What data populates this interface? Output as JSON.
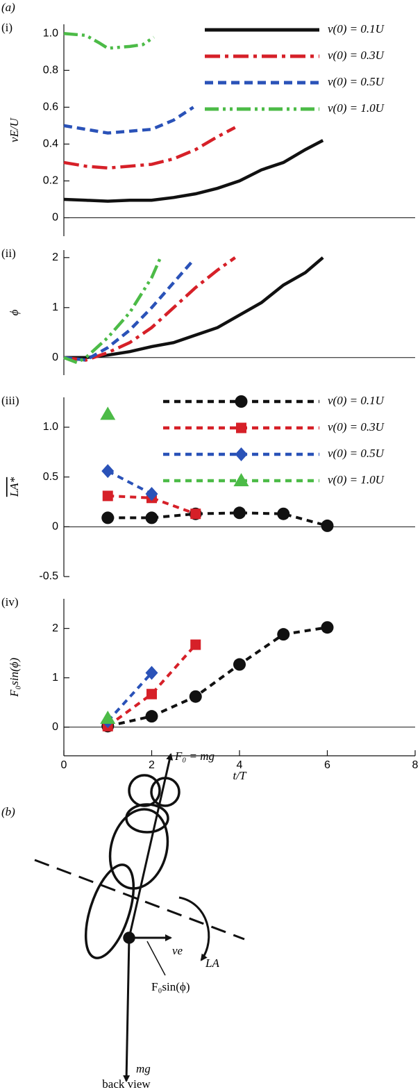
{
  "panel_label": "(a)",
  "chart_data": [
    {
      "type": "line",
      "panel_label": "(i)",
      "ylabel": "vE/U",
      "xlim": [
        0,
        8
      ],
      "ylim": [
        -0.1,
        1.05
      ],
      "yticks": [
        0,
        0.2,
        0.4,
        0.6,
        0.8,
        {
          "value": 1,
          "label": "1.0"
        }
      ],
      "legend": "upper right",
      "series": [
        {
          "name": "v(0) = 0.1U",
          "color": "#111111",
          "dash": "solid",
          "x": [
            0,
            0.5,
            1,
            1.5,
            2,
            2.5,
            3,
            3.5,
            4,
            4.5,
            5,
            5.5,
            5.9
          ],
          "values": [
            0.1,
            0.095,
            0.09,
            0.095,
            0.095,
            0.11,
            0.13,
            0.16,
            0.2,
            0.26,
            0.3,
            0.37,
            0.42
          ]
        },
        {
          "name": "v(0) = 0.3U",
          "color": "#d62028",
          "dash": "dashdot",
          "x": [
            0,
            0.5,
            1,
            1.5,
            2,
            2.5,
            3,
            3.5,
            3.9
          ],
          "values": [
            0.3,
            0.28,
            0.27,
            0.28,
            0.29,
            0.32,
            0.37,
            0.44,
            0.49
          ]
        },
        {
          "name": "v(0) = 0.5U",
          "color": "#2a52b8",
          "dash": "dashed",
          "x": [
            0,
            0.5,
            1,
            1.5,
            2,
            2.5,
            2.95
          ],
          "values": [
            0.5,
            0.48,
            0.46,
            0.47,
            0.48,
            0.53,
            0.6
          ]
        },
        {
          "name": "v(0) = 1.0U",
          "color": "#4cbb47",
          "dash": "dashdotdot",
          "x": [
            0,
            0.5,
            0.8,
            1,
            1.5,
            1.8,
            2.05
          ],
          "values": [
            1.0,
            0.99,
            0.95,
            0.92,
            0.93,
            0.94,
            0.98
          ]
        }
      ]
    },
    {
      "type": "line",
      "panel_label": "(ii)",
      "ylabel": "ϕ",
      "xlim": [
        0,
        8
      ],
      "ylim": [
        -0.35,
        2.15
      ],
      "yticks": [
        0,
        1,
        2
      ],
      "series": [
        {
          "name": "v(0) = 0.1U",
          "color": "#111111",
          "dash": "solid",
          "x": [
            0,
            0.5,
            1,
            1.5,
            2,
            2.5,
            3,
            3.5,
            4,
            4.5,
            5,
            5.5,
            5.9
          ],
          "values": [
            0,
            0,
            0.05,
            0.12,
            0.22,
            0.3,
            0.45,
            0.6,
            0.85,
            1.1,
            1.45,
            1.7,
            2.0
          ]
        },
        {
          "name": "v(0) = 0.3U",
          "color": "#d62028",
          "dash": "dashdot",
          "x": [
            0,
            0.5,
            1,
            1.5,
            2,
            2.5,
            3,
            3.5,
            3.9
          ],
          "values": [
            0,
            -0.05,
            0.1,
            0.3,
            0.6,
            1.0,
            1.4,
            1.75,
            2.0
          ]
        },
        {
          "name": "v(0) = 0.5U",
          "color": "#2a52b8",
          "dash": "dashed",
          "x": [
            0,
            0.5,
            1,
            1.5,
            2,
            2.5,
            2.9
          ],
          "values": [
            0,
            -0.05,
            0.2,
            0.55,
            1.0,
            1.5,
            1.9
          ]
        },
        {
          "name": "v(0) = 1.0U",
          "color": "#4cbb47",
          "dash": "dashdotdot",
          "x": [
            0,
            0.3,
            0.5,
            1,
            1.5,
            2,
            2.2
          ],
          "values": [
            0,
            -0.1,
            0,
            0.4,
            0.9,
            1.6,
            2.0
          ]
        }
      ]
    },
    {
      "type": "line-marker",
      "panel_label": "(iii)",
      "ylabel": "LA*",
      "xlim": [
        0,
        8
      ],
      "ylim": [
        -0.5,
        1.3
      ],
      "yticks": [
        -0.5,
        0,
        0.5,
        {
          "value": 1,
          "label": "1.0"
        }
      ],
      "legend": "upper right",
      "series": [
        {
          "name": "v(0) = 0.1U",
          "color": "#111111",
          "marker": "circle",
          "x": [
            1,
            2,
            3,
            4,
            5,
            6
          ],
          "values": [
            0.09,
            0.09,
            0.13,
            0.14,
            0.13,
            0.01
          ]
        },
        {
          "name": "v(0) = 0.3U",
          "color": "#d62028",
          "marker": "square",
          "x": [
            1,
            2,
            3
          ],
          "values": [
            0.31,
            0.29,
            0.13
          ]
        },
        {
          "name": "v(0) = 0.5U",
          "color": "#2a52b8",
          "marker": "diamond",
          "x": [
            1,
            2
          ],
          "values": [
            0.56,
            0.33
          ]
        },
        {
          "name": "v(0) = 1.0U",
          "color": "#4cbb47",
          "marker": "triangle",
          "x": [
            1
          ],
          "values": [
            1.13
          ]
        }
      ]
    },
    {
      "type": "line-marker",
      "panel_label": "(iv)",
      "ylabel": "F₀sin(ϕ)",
      "xlabel": "t/T",
      "xlim": [
        0,
        8
      ],
      "xticks": [
        0,
        2,
        4,
        6,
        8
      ],
      "ylim": [
        -0.58,
        2.6
      ],
      "yticks": [
        0,
        1,
        2
      ],
      "series": [
        {
          "name": "v(0) = 0.1U",
          "color": "#111111",
          "marker": "circle",
          "x": [
            1,
            2,
            3,
            4,
            5,
            6
          ],
          "values": [
            0.02,
            0.22,
            0.62,
            1.27,
            1.88,
            2.02
          ]
        },
        {
          "name": "v(0) = 0.3U",
          "color": "#d62028",
          "marker": "square",
          "x": [
            1,
            2,
            3
          ],
          "values": [
            0.02,
            0.67,
            1.67
          ]
        },
        {
          "name": "v(0) = 0.5U",
          "color": "#2a52b8",
          "marker": "diamond",
          "x": [
            1,
            2
          ],
          "values": [
            0.12,
            1.1
          ]
        },
        {
          "name": "v(0) = 1.0U",
          "color": "#4cbb47",
          "marker": "triangle",
          "x": [
            1
          ],
          "values": [
            0.18
          ]
        }
      ]
    }
  ],
  "diagram": {
    "panel_label": "(b)",
    "force_label": "F₀ = mg",
    "velocity_label": "ve",
    "moment_label": "LA",
    "side_force_label": "F₀sin(ϕ)",
    "weight_label": "mg",
    "caption": "back view"
  }
}
